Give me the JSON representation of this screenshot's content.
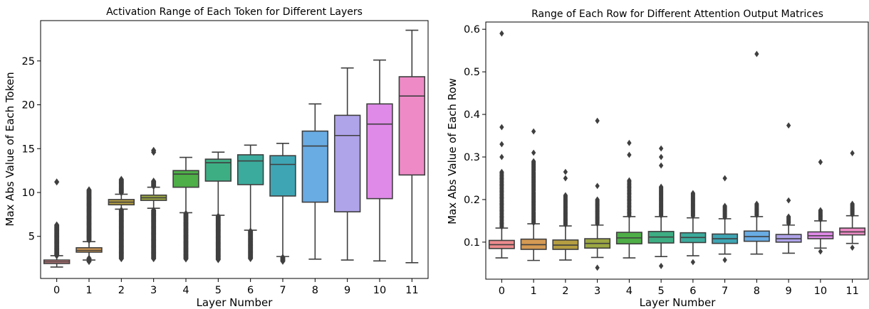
{
  "chart_data": [
    {
      "type": "box",
      "title": "Activation Range of Each Token for Different Layers",
      "xlabel": "Layer Number",
      "ylabel": "Max Abs Value of Each Token",
      "categories": [
        "0",
        "1",
        "2",
        "3",
        "4",
        "5",
        "6",
        "7",
        "8",
        "9",
        "10",
        "11"
      ],
      "ylim": [
        0.2,
        29.6
      ],
      "yticks": [
        5,
        10,
        15,
        20,
        25
      ],
      "yticklabels": [
        "5",
        "10",
        "15",
        "20",
        "25"
      ],
      "boxes": [
        {
          "label": "0",
          "whisker_low": 1.5,
          "q1": 1.9,
          "median": 2.1,
          "q3": 2.3,
          "whisker_high": 2.8,
          "color": "#ED8B8E"
        },
        {
          "label": "1",
          "whisker_low": 2.3,
          "q1": 3.2,
          "median": 3.4,
          "q3": 3.7,
          "whisker_high": 4.4,
          "color": "#D59A54"
        },
        {
          "label": "2",
          "whisker_low": 8.1,
          "q1": 8.6,
          "median": 8.9,
          "q3": 9.2,
          "whisker_high": 9.8,
          "color": "#B59E42"
        },
        {
          "label": "3",
          "whisker_low": 8.2,
          "q1": 9.1,
          "median": 9.4,
          "q3": 9.7,
          "whisker_high": 10.6,
          "color": "#9CA843"
        },
        {
          "label": "4",
          "whisker_low": 7.7,
          "q1": 10.6,
          "median": 12.1,
          "q3": 12.5,
          "whisker_high": 14.0,
          "color": "#4EAE47"
        },
        {
          "label": "5",
          "whisker_low": 7.4,
          "q1": 11.3,
          "median": 13.4,
          "q3": 13.8,
          "whisker_high": 14.6,
          "color": "#3DAE84"
        },
        {
          "label": "6",
          "whisker_low": 5.7,
          "q1": 10.9,
          "median": 13.6,
          "q3": 14.3,
          "whisker_high": 15.4,
          "color": "#3BAB9D"
        },
        {
          "label": "7",
          "whisker_low": 2.7,
          "q1": 9.6,
          "median": 13.2,
          "q3": 14.2,
          "whisker_high": 15.6,
          "color": "#3EA5B4"
        },
        {
          "label": "8",
          "whisker_low": 2.4,
          "q1": 8.9,
          "median": 15.3,
          "q3": 17.0,
          "whisker_high": 20.1,
          "color": "#69ACE4"
        },
        {
          "label": "9",
          "whisker_low": 2.3,
          "q1": 7.8,
          "median": 16.5,
          "q3": 18.8,
          "whisker_high": 24.2,
          "color": "#AFA3EA"
        },
        {
          "label": "10",
          "whisker_low": 2.2,
          "q1": 9.3,
          "median": 17.8,
          "q3": 20.1,
          "whisker_high": 25.1,
          "color": "#DF8AE8"
        },
        {
          "label": "11",
          "whisker_low": 2.0,
          "q1": 12.0,
          "median": 21.0,
          "q3": 23.2,
          "whisker_high": 28.5,
          "color": "#EE8AC6"
        }
      ],
      "outlier_ranges": [
        {
          "label": "0",
          "from": 2.8,
          "to": 6.3,
          "extra": [
            11.2
          ]
        },
        {
          "label": "1",
          "from": 2.1,
          "to": 2.5,
          "extra": []
        },
        {
          "label": "1",
          "from": 4.5,
          "to": 10.3,
          "extra": []
        },
        {
          "label": "2",
          "from": 2.4,
          "to": 8.0,
          "extra": []
        },
        {
          "label": "2",
          "from": 9.9,
          "to": 11.5,
          "extra": []
        },
        {
          "label": "3",
          "from": 2.4,
          "to": 8.0,
          "extra": [
            14.6,
            14.8
          ]
        },
        {
          "label": "3",
          "from": 10.7,
          "to": 11.3,
          "extra": []
        },
        {
          "label": "4",
          "from": 2.4,
          "to": 7.6,
          "extra": []
        },
        {
          "label": "5",
          "from": 2.3,
          "to": 7.3,
          "extra": []
        },
        {
          "label": "6",
          "from": 2.4,
          "to": 5.6,
          "extra": []
        },
        {
          "label": "7",
          "from": 2.1,
          "to": 2.6,
          "extra": []
        }
      ]
    },
    {
      "type": "box",
      "title": "Range of Each Row for Different Attention Output Matrices",
      "xlabel": "Layer Number",
      "ylabel": "Max Abs Value of Each Row",
      "categories": [
        "0",
        "1",
        "2",
        "3",
        "4",
        "5",
        "6",
        "7",
        "8",
        "9",
        "10",
        "11"
      ],
      "ylim": [
        0.013,
        0.617
      ],
      "yticks": [
        0.1,
        0.2,
        0.3,
        0.4,
        0.5,
        0.6
      ],
      "yticklabels": [
        "0.1",
        "0.2",
        "0.3",
        "0.4",
        "0.5",
        "0.6"
      ],
      "boxes": [
        {
          "label": "0",
          "whisker_low": 0.063,
          "q1": 0.085,
          "median": 0.094,
          "q3": 0.104,
          "whisker_high": 0.133,
          "color": "#ED8B8E"
        },
        {
          "label": "1",
          "whisker_low": 0.057,
          "q1": 0.083,
          "median": 0.094,
          "q3": 0.107,
          "whisker_high": 0.143,
          "color": "#D59A54"
        },
        {
          "label": "2",
          "whisker_low": 0.058,
          "q1": 0.083,
          "median": 0.093,
          "q3": 0.105,
          "whisker_high": 0.138,
          "color": "#B59E42"
        },
        {
          "label": "3",
          "whisker_low": 0.064,
          "q1": 0.086,
          "median": 0.097,
          "q3": 0.108,
          "whisker_high": 0.14,
          "color": "#9CA843"
        },
        {
          "label": "4",
          "whisker_low": 0.063,
          "q1": 0.096,
          "median": 0.11,
          "q3": 0.123,
          "whisker_high": 0.16,
          "color": "#4EAE47"
        },
        {
          "label": "5",
          "whisker_low": 0.066,
          "q1": 0.098,
          "median": 0.112,
          "q3": 0.125,
          "whisker_high": 0.16,
          "color": "#3DAE84"
        },
        {
          "label": "6",
          "whisker_low": 0.068,
          "q1": 0.099,
          "median": 0.111,
          "q3": 0.122,
          "whisker_high": 0.157,
          "color": "#3BAB9D"
        },
        {
          "label": "7",
          "whisker_low": 0.072,
          "q1": 0.097,
          "median": 0.108,
          "q3": 0.119,
          "whisker_high": 0.155,
          "color": "#3EA5B4"
        },
        {
          "label": "8",
          "whisker_low": 0.072,
          "q1": 0.102,
          "median": 0.113,
          "q3": 0.126,
          "whisker_high": 0.16,
          "color": "#69ACE4"
        },
        {
          "label": "9",
          "whisker_low": 0.074,
          "q1": 0.1,
          "median": 0.108,
          "q3": 0.118,
          "whisker_high": 0.14,
          "color": "#AFA3EA"
        },
        {
          "label": "10",
          "whisker_low": 0.086,
          "q1": 0.108,
          "median": 0.115,
          "q3": 0.124,
          "whisker_high": 0.15,
          "color": "#DF8AE8"
        },
        {
          "label": "11",
          "whisker_low": 0.097,
          "q1": 0.117,
          "median": 0.124,
          "q3": 0.133,
          "whisker_high": 0.162,
          "color": "#EE8AC6"
        }
      ],
      "outlier_ranges": [
        {
          "label": "0",
          "from": 0.135,
          "to": 0.265,
          "extra": [
            0.3,
            0.33,
            0.37,
            0.59
          ]
        },
        {
          "label": "1",
          "from": 0.145,
          "to": 0.29,
          "extra": [
            0.31,
            0.36
          ]
        },
        {
          "label": "2",
          "from": 0.14,
          "to": 0.21,
          "extra": [
            0.25,
            0.265
          ]
        },
        {
          "label": "3",
          "from": 0.142,
          "to": 0.2,
          "extra": [
            0.232,
            0.385,
            0.04
          ]
        },
        {
          "label": "4",
          "from": 0.162,
          "to": 0.245,
          "extra": [
            0.305,
            0.333
          ]
        },
        {
          "label": "5",
          "from": 0.162,
          "to": 0.23,
          "extra": [
            0.28,
            0.3,
            0.32,
            0.044
          ]
        },
        {
          "label": "6",
          "from": 0.16,
          "to": 0.215,
          "extra": [
            0.053
          ]
        },
        {
          "label": "7",
          "from": 0.157,
          "to": 0.185,
          "extra": [
            0.25,
            0.058
          ]
        },
        {
          "label": "8",
          "from": 0.162,
          "to": 0.19,
          "extra": [
            0.542
          ]
        },
        {
          "label": "9",
          "from": 0.142,
          "to": 0.16,
          "extra": [
            0.198,
            0.374
          ]
        },
        {
          "label": "10",
          "from": 0.152,
          "to": 0.175,
          "extra": [
            0.288,
            0.078
          ]
        },
        {
          "label": "11",
          "from": 0.164,
          "to": 0.19,
          "extra": [
            0.309,
            0.087
          ]
        }
      ]
    }
  ]
}
